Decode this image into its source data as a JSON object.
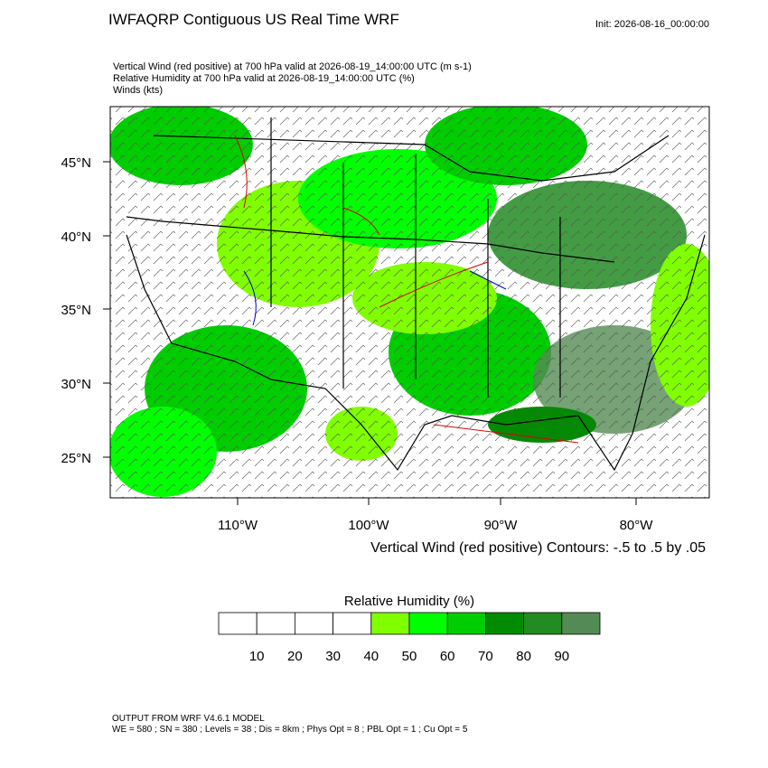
{
  "header": {
    "title": "IWFAQRP Contiguous US Real Time WRF",
    "init": "Init: 2026-08-16_00:00:00"
  },
  "subtitles": [
    "Vertical Wind (red positive) at 700 hPa valid at 2026-08-19_14:00:00 UTC   (m s-1)",
    "Relative Humidity at 700 hPa valid at 2026-08-19_14:00:00 UTC   (%)",
    "Winds   (kts)"
  ],
  "map": {
    "lat_labels": [
      "45°N",
      "40°N",
      "35°N",
      "30°N",
      "25°N"
    ],
    "lon_labels": [
      "110°W",
      "100°W",
      "90°W",
      "80°W"
    ],
    "contour_note": "Vertical Wind (red positive) Contours: -.5 to .5 by .05"
  },
  "colorbar": {
    "title": "Relative Humidity  (%)",
    "colors": [
      "#ffffff",
      "#ffffff",
      "#ffffff",
      "#ffffff",
      "#80ff00",
      "#00ff00",
      "#00cd00",
      "#008b00",
      "#228b22",
      "#548b54"
    ],
    "labels": [
      "10",
      "20",
      "30",
      "40",
      "50",
      "60",
      "70",
      "80",
      "90"
    ]
  },
  "footer": {
    "line1": "OUTPUT FROM WRF V4.6.1 MODEL",
    "line2": "WE = 580 ; SN = 380 ; Levels = 38 ; Dis = 8km ; Phys Opt = 8 ; PBL Opt = 1 ; Cu Opt = 5"
  }
}
